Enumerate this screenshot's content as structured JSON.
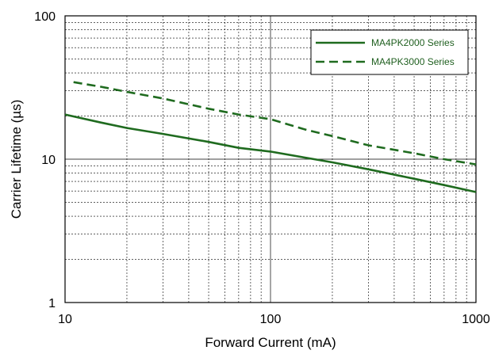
{
  "chart_data": {
    "type": "line",
    "xlabel": "Forward Current (mA)",
    "ylabel": "Carrier Lifetime (µs)",
    "xscale": "log",
    "yscale": "log",
    "xlim": [
      10,
      1000
    ],
    "ylim": [
      1,
      100
    ],
    "x_ticks": [
      10,
      100,
      1000
    ],
    "x_tick_labels": [
      "10",
      "100",
      "1000"
    ],
    "y_ticks": [
      1,
      10,
      100
    ],
    "y_tick_labels": [
      "1",
      "10",
      "100"
    ],
    "grid": true,
    "legend": "top-right",
    "series": [
      {
        "name": "MA4PK2000 Series",
        "style": "solid",
        "color": "#1f6b1f",
        "x": [
          10,
          15,
          20,
          30,
          50,
          70,
          100,
          150,
          200,
          300,
          500,
          700,
          1000
        ],
        "y": [
          20.5,
          18.0,
          16.5,
          15.0,
          13.2,
          12.0,
          11.3,
          10.2,
          9.5,
          8.5,
          7.3,
          6.6,
          5.9
        ]
      },
      {
        "name": "MA4PK3000 Series",
        "style": "dashed",
        "color": "#1f6b1f",
        "x": [
          11,
          15,
          20,
          30,
          50,
          70,
          100,
          150,
          200,
          300,
          500,
          700,
          1000
        ],
        "y": [
          34.5,
          32.0,
          29.5,
          26.5,
          22.5,
          20.5,
          19.0,
          16.0,
          14.5,
          12.5,
          11.0,
          10.0,
          9.2
        ]
      }
    ]
  }
}
